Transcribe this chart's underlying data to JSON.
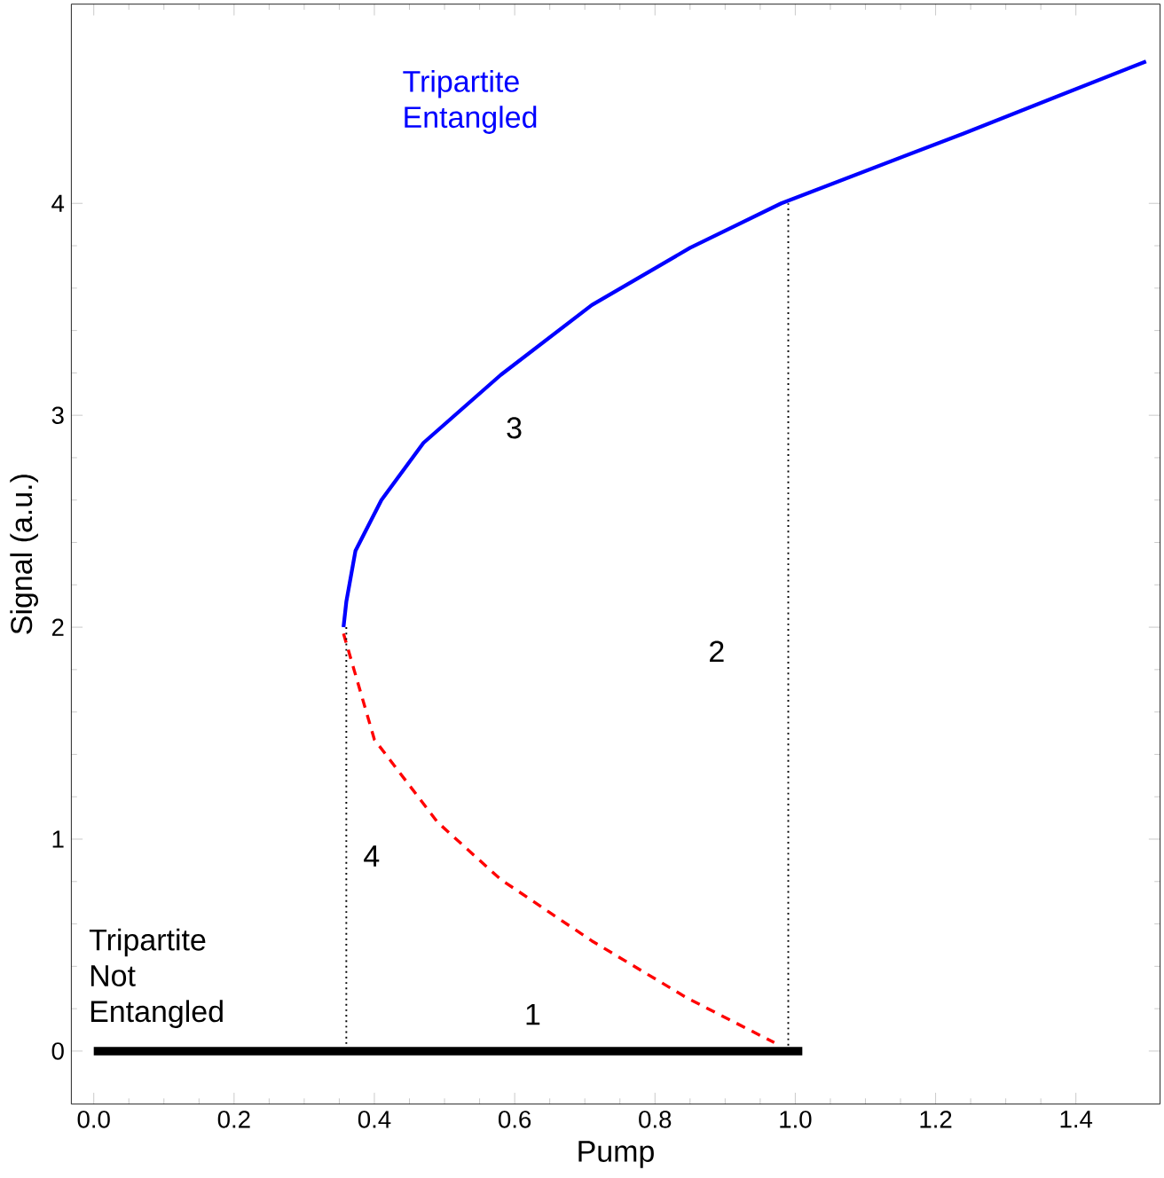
{
  "chart_data": {
    "type": "line",
    "xlabel": "Pump",
    "ylabel": "Signal (a.u.)",
    "xlim": [
      -0.032,
      1.52
    ],
    "ylim": [
      -0.25,
      4.94
    ],
    "xticks": [
      {
        "value": 0,
        "label": "0.0"
      },
      {
        "value": 0.2,
        "label": "0.2"
      },
      {
        "value": 0.4,
        "label": "0.4"
      },
      {
        "value": 0.6,
        "label": "0.6"
      },
      {
        "value": 0.8,
        "label": "0.8"
      },
      {
        "value": 1.0,
        "label": "1.0"
      },
      {
        "value": 1.2,
        "label": "1.2"
      },
      {
        "value": 1.4,
        "label": "1.4"
      }
    ],
    "yticks": [
      0,
      1,
      2,
      3,
      4
    ],
    "grid": false,
    "marker": "none",
    "series": [
      {
        "color": "#000000",
        "x": [
          0,
          1.01
        ],
        "values": [
          0,
          0
        ],
        "line_style": "solid"
      },
      {
        "color": "#0000ff",
        "x": [
          0.356,
          0.36,
          0.373,
          0.41,
          0.47,
          0.58,
          0.71,
          0.85,
          0.98,
          1.24,
          1.37,
          1.5
        ],
        "values": [
          2.0,
          2.12,
          2.36,
          2.6,
          2.87,
          3.19,
          3.52,
          3.79,
          4.0,
          4.33,
          4.5,
          4.67
        ],
        "line_style": "solid"
      },
      {
        "color": "#ff0000",
        "x": [
          0.356,
          0.4,
          0.49,
          0.58,
          0.71,
          0.846,
          0.97
        ],
        "values": [
          1.97,
          1.47,
          1.08,
          0.81,
          0.52,
          0.25,
          0.04
        ],
        "line_style": "dashed"
      },
      {
        "color": "#000000",
        "x": [
          0.36,
          0.36
        ],
        "values": [
          2.0,
          0.0
        ],
        "line_style": "dotted"
      },
      {
        "color": "#000000",
        "x": [
          0.99,
          0.99
        ],
        "values": [
          0.0,
          4.0
        ],
        "line_style": "dotted"
      }
    ],
    "annotations": [
      "Tripartite Entangled",
      "Tripartite Not Entangled",
      "1",
      "2",
      "3",
      "4"
    ]
  }
}
